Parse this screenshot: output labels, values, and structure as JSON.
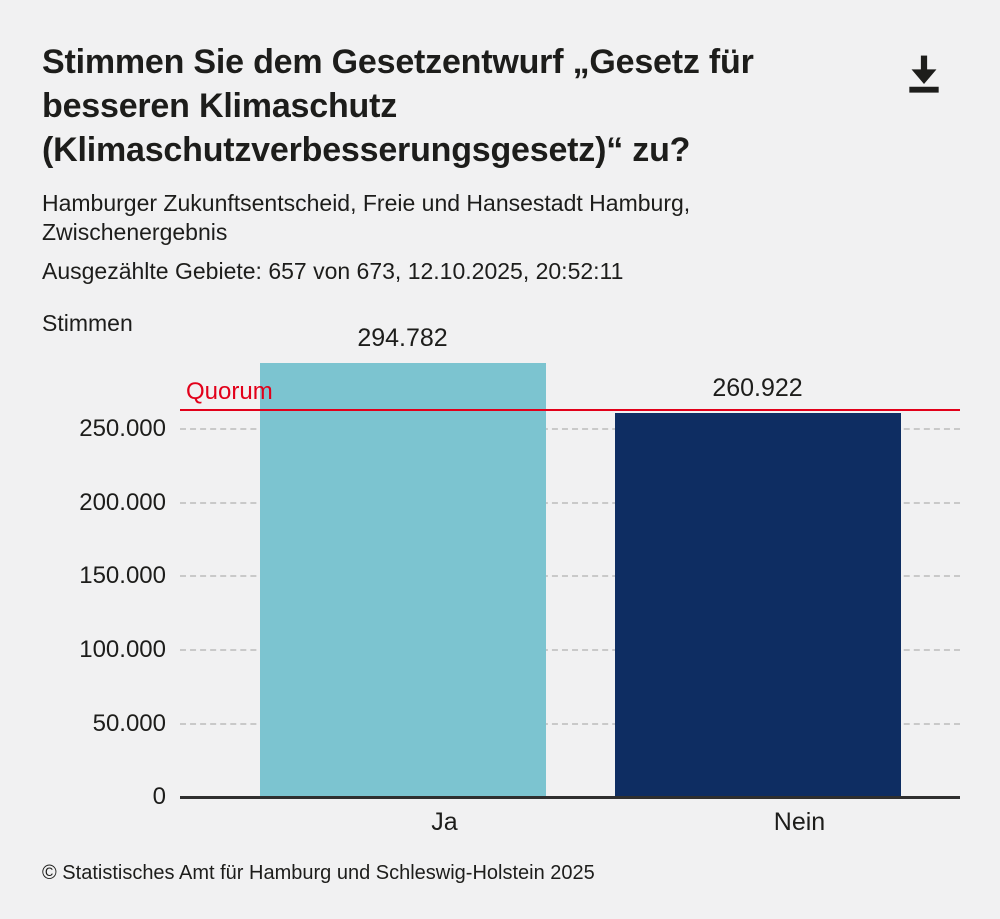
{
  "header": {
    "title": "Stimmen Sie dem Gesetzentwurf „Gesetz für\nbesseren Klimaschutz\n(Klimaschutzverbesserungsgesetz)“ zu?",
    "subtitle": "Hamburger Zukunftsentscheid, Freie und Hansestadt Hamburg,\nZwischenergebnis",
    "status_line": "Ausgezählte Gebiete: 657 von 673, 12.10.2025, 20:52:11",
    "download_icon": "download-icon"
  },
  "chart_data": {
    "type": "bar",
    "title": "Stimmen Sie dem Gesetzentwurf „Gesetz für besseren Klimaschutz (Klimaschutzverbesserungsgesetz)“ zu?",
    "subtitle": "Hamburger Zukunftsentscheid, Freie und Hansestadt Hamburg, Zwischenergebnis",
    "ylabel": "Stimmen",
    "xlabel": "",
    "categories": [
      "Ja",
      "Nein"
    ],
    "values": [
      294782,
      260922
    ],
    "value_labels": [
      "294.782",
      "260.922"
    ],
    "bar_colors": [
      "#7cc4d0",
      "#0e2d62"
    ],
    "ylim": [
      0,
      296000
    ],
    "yticks": [
      0,
      50000,
      100000,
      150000,
      200000,
      250000
    ],
    "ytick_labels": [
      "0",
      "50.000",
      "100.000",
      "150.000",
      "200.000",
      "250.000"
    ],
    "grid": "horizontal dashed",
    "legend": "none",
    "annotations": [
      {
        "type": "hline",
        "label": "Quorum",
        "value": 263000,
        "color": "#e2001a"
      }
    ]
  },
  "footer": {
    "copyright": "© Statistisches Amt für Hamburg und Schleswig-Holstein 2025"
  },
  "colors": {
    "background": "#f1f1f2",
    "text": "#1d1d1b",
    "bar_ja": "#7cc4d0",
    "bar_nein": "#0e2d62",
    "quorum_red": "#e2001a",
    "gridline": "#c9c9c9",
    "baseline": "#2f2f2f"
  }
}
